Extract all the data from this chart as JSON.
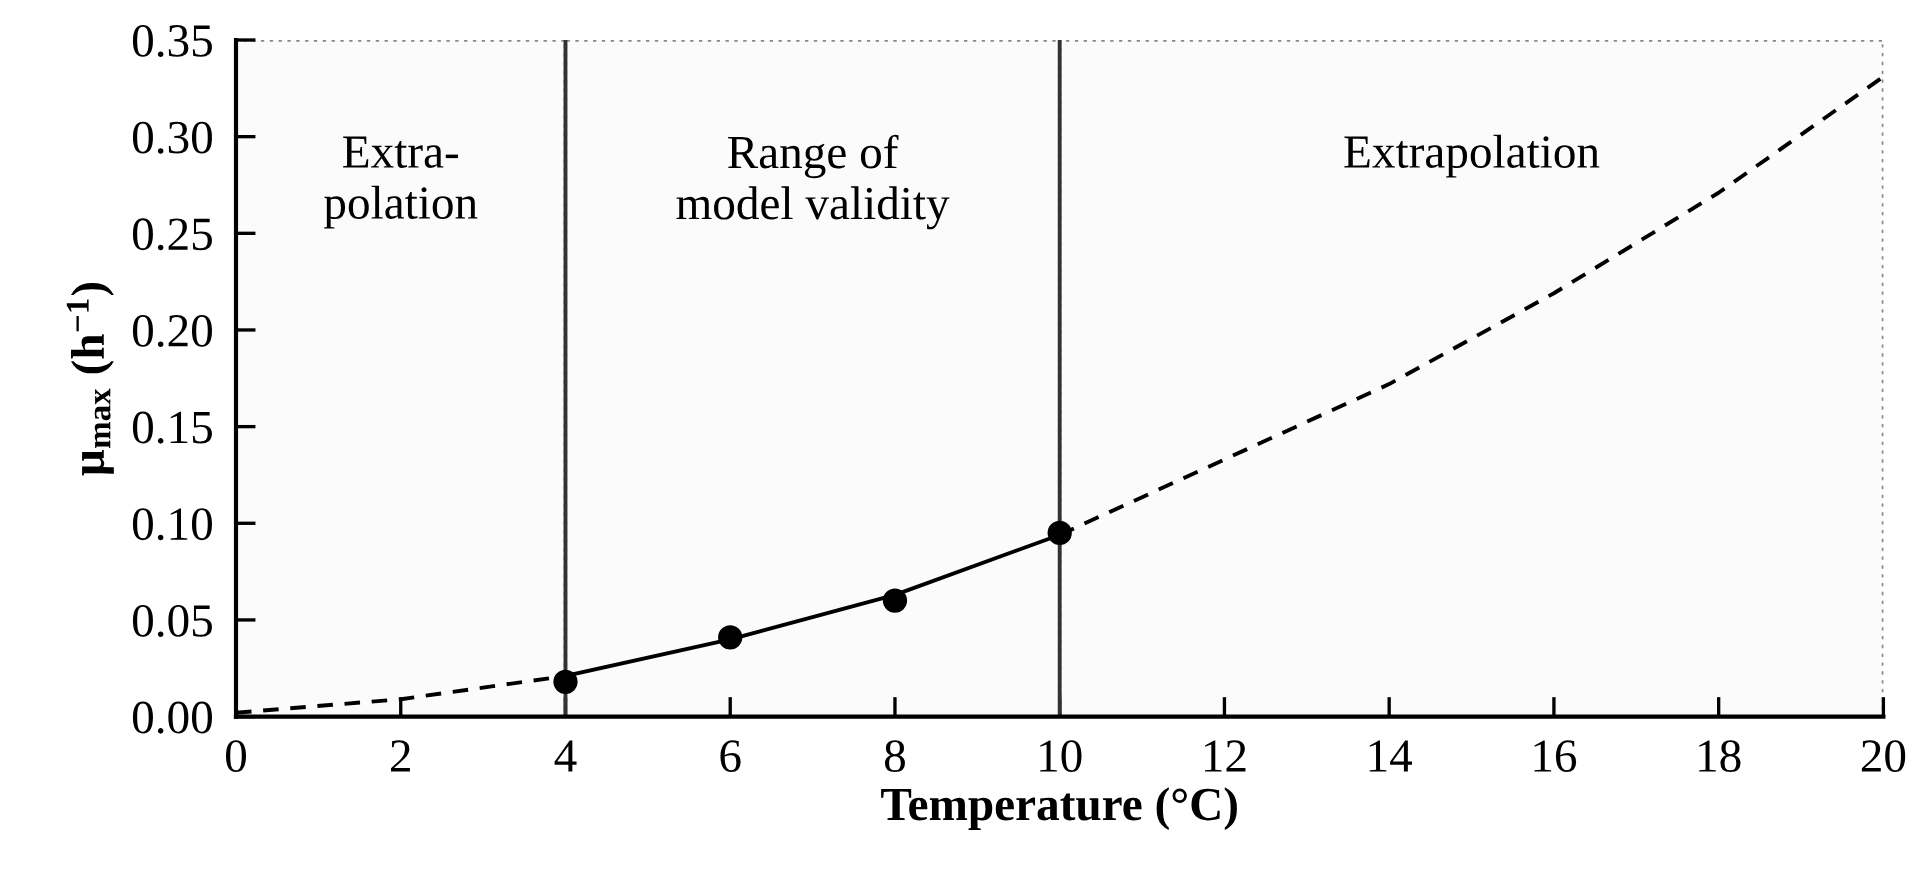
{
  "chart_data": {
    "type": "line",
    "xlabel": "Temperature (°C)",
    "ylabel": "μ$_{max}$ (h$^{−1}$)",
    "xlim": [
      0,
      20
    ],
    "xticks": [
      0,
      2,
      4,
      6,
      8,
      10,
      12,
      14,
      16,
      18,
      20
    ],
    "ylim": [
      0,
      0.35
    ],
    "yticks": [
      {
        "value": 0,
        "label": "0.00"
      },
      {
        "value": 0.05,
        "label": "0.05"
      },
      {
        "value": 0.1,
        "label": "0.10"
      },
      {
        "value": 0.15,
        "label": "0.15"
      },
      {
        "value": 0.2,
        "label": "0.20"
      },
      {
        "value": 0.25,
        "label": "0.25"
      },
      {
        "value": 0.3,
        "label": "0.30"
      },
      {
        "value": 0.35,
        "label": "0.35"
      }
    ],
    "grid": false,
    "legend": false,
    "series": [
      {
        "line_style": "dashed",
        "marker": "none",
        "color": "#000000",
        "x": [
          0,
          2,
          4
        ],
        "values": [
          0.002,
          0.009,
          0.021
        ]
      },
      {
        "line_style": "solid",
        "marker": "none",
        "color": "#000000",
        "x": [
          4,
          6,
          8,
          10
        ],
        "values": [
          0.021,
          0.04,
          0.063,
          0.094
        ]
      },
      {
        "line_style": "dashed",
        "marker": "none",
        "color": "#000000",
        "x": [
          10,
          12,
          14,
          16,
          18,
          20
        ],
        "values": [
          0.094,
          0.133,
          0.172,
          0.219,
          0.271,
          0.331
        ]
      },
      {
        "type": "scatter",
        "marker": "circle",
        "color": "#000000",
        "x": [
          4,
          6,
          8,
          10
        ],
        "values": [
          0.018,
          0.041,
          0.06,
          0.095
        ]
      }
    ],
    "ref_lines": [
      {
        "axis": "x",
        "value": 4,
        "color": "#333333"
      },
      {
        "axis": "x",
        "value": 10,
        "color": "#333333"
      }
    ],
    "bands": [
      {
        "axis": "x",
        "from": 0,
        "to": 4,
        "label": "Extra-\npolation",
        "color": "#fbfbfb"
      },
      {
        "axis": "x",
        "from": 4,
        "to": 10,
        "label": "Range of\nmodel validity",
        "color": "#fbfbfb"
      },
      {
        "axis": "x",
        "from": 10,
        "to": 20,
        "label": "Extrapolation",
        "color": "#fbfbfb"
      }
    ]
  }
}
